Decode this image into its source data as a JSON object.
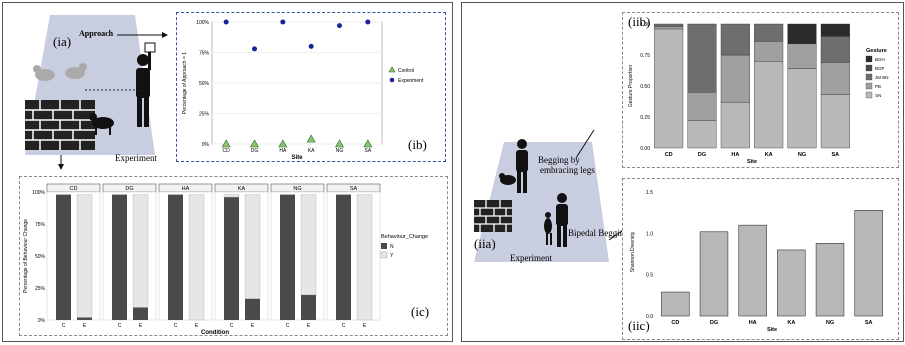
{
  "left": {
    "label_ia": "(ia)",
    "approach": "Approach",
    "experiment": "Experiment",
    "label_ib": "(ib)",
    "label_ic": "(ic)"
  },
  "right": {
    "label_iia": "(iia)",
    "label_iib": "(iib)",
    "label_iic": "(iic)",
    "begging_embrace": "Begging by\nembracing legs",
    "bipedal": "Bipedal Begging",
    "experiment": "Experiment"
  },
  "colors": {
    "control_marker": "#8bc46a",
    "experiment_marker": "#1c2299",
    "dark_bar": "#4a4a4a",
    "light_bar": "#e6e6e6",
    "panel_bg": "#c9cde0",
    "brick": "#222222"
  },
  "chart_data": [
    {
      "id": "ib",
      "type": "scatter",
      "xlabel": "Site",
      "ylabel": "Percentage of Approach = 1",
      "categories": [
        "CD",
        "DG",
        "HA",
        "KA",
        "NG",
        "SA"
      ],
      "yticks": [
        "0%",
        "25%",
        "50%",
        "75%",
        "100%"
      ],
      "ylim": [
        0,
        100
      ],
      "series": [
        {
          "name": "Control",
          "marker": "triangle",
          "values": [
            0,
            0,
            0,
            4,
            0,
            0
          ]
        },
        {
          "name": "Experiment",
          "marker": "circle",
          "values": [
            100,
            78,
            100,
            80,
            97,
            100
          ]
        }
      ],
      "legend": "right"
    },
    {
      "id": "ic",
      "type": "bar",
      "stacked": true,
      "xlabel": "Condition",
      "ylabel": "Percentage of Behaviour Change",
      "facets": [
        "CD",
        "DG",
        "HA",
        "KA",
        "NG",
        "SA"
      ],
      "conditions": [
        "C",
        "E"
      ],
      "yticks": [
        "0%",
        "25%",
        "50%",
        "75%",
        "100%"
      ],
      "legend_title": "Behaviour_Change",
      "series": [
        {
          "name": "N",
          "values": [
            [
              100,
              2
            ],
            [
              100,
              10
            ],
            [
              100,
              0
            ],
            [
              98,
              17
            ],
            [
              100,
              20
            ],
            [
              100,
              0
            ]
          ]
        },
        {
          "name": "Y",
          "values": [
            [
              0,
              98
            ],
            [
              0,
              90
            ],
            [
              0,
              100
            ],
            [
              2,
              83
            ],
            [
              0,
              80
            ],
            [
              0,
              100
            ]
          ]
        }
      ]
    },
    {
      "id": "iib",
      "type": "bar",
      "stacked": true,
      "xlabel": "Site",
      "ylabel": "Gesture Proportion",
      "categories": [
        "CD",
        "DG",
        "HA",
        "KA",
        "NG",
        "SA"
      ],
      "yticks": [
        "0.00",
        "0.25",
        "0.50",
        "0.75",
        "1.00"
      ],
      "legend_title": "Gesture",
      "series": [
        {
          "name": "SN",
          "values": [
            0.96,
            0.22,
            0.37,
            0.7,
            0.64,
            0.43
          ]
        },
        {
          "name": "PB",
          "values": [
            0.02,
            0.23,
            0.38,
            0.16,
            0.2,
            0.26
          ]
        },
        {
          "name": "JM BN",
          "values": [
            0.02,
            0.55,
            0.25,
            0.14,
            0.0,
            0.21
          ]
        },
        {
          "name": "BGP",
          "values": [
            0.0,
            0.0,
            0.0,
            0.0,
            0.0,
            0.0
          ]
        },
        {
          "name": "BGH",
          "values": [
            0.0,
            0.0,
            0.0,
            0.0,
            0.16,
            0.1
          ]
        }
      ]
    },
    {
      "id": "iic",
      "type": "bar",
      "xlabel": "Site",
      "ylabel": "Shannon Diversity",
      "categories": [
        "CD",
        "DG",
        "HA",
        "KA",
        "NG",
        "SA"
      ],
      "values": [
        0.29,
        1.02,
        1.1,
        0.8,
        0.88,
        1.28
      ],
      "yticks": [
        "0.0",
        "0.5",
        "1.0",
        "1.5"
      ],
      "ylim": [
        0,
        1.55
      ]
    }
  ]
}
